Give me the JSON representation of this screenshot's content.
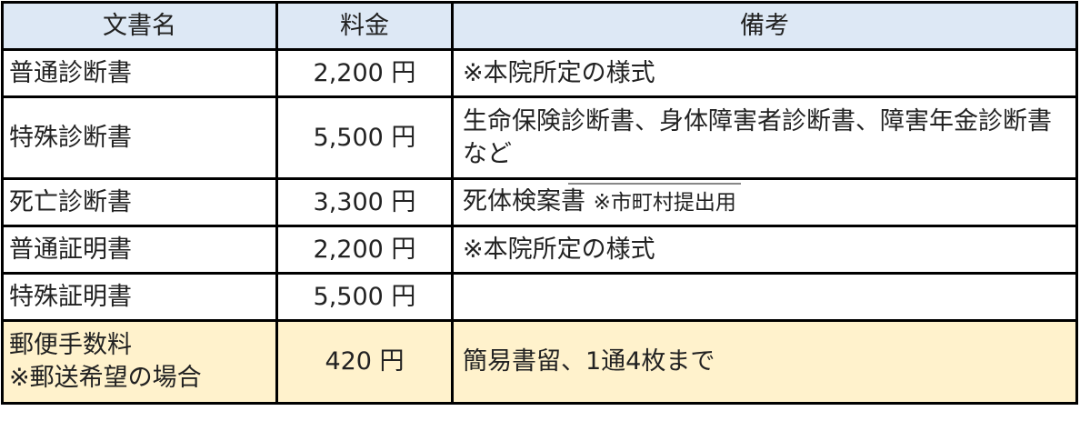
{
  "headers": [
    "文書名",
    "料金",
    "備考"
  ],
  "rows": [
    {
      "name": "普通診断書",
      "fee": "2,200 円",
      "note": "※本院所定の様式",
      "note_small": ""
    },
    {
      "name": "特殊診断書",
      "fee": "5,500 円",
      "note": "生命保険診断書、身体障害者診断書、障害年金診断書など",
      "note_small": ""
    },
    {
      "name": "死亡診断書",
      "fee": "3,300 円",
      "note": "死体検案書 ",
      "note_small": "※市町村提出用"
    },
    {
      "name": "普通証明書",
      "fee": "2,200 円",
      "note": "※本院所定の様式",
      "note_small": ""
    },
    {
      "name": "特殊証明書",
      "fee": "5,500 円",
      "note": "",
      "note_small": ""
    },
    {
      "name": "郵便手数料",
      "name_sub": "※郵送希望の場合",
      "fee": "420 円",
      "note": "簡易書留、1通4枚まで",
      "note_small": ""
    }
  ],
  "colors": {
    "header_bg": "#dde8f5",
    "postage_row_bg": "#fff2cc"
  }
}
